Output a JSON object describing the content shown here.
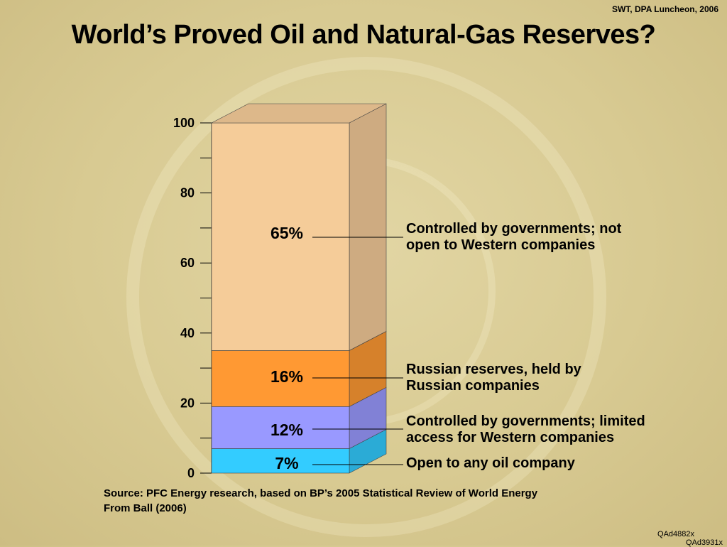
{
  "header": {
    "note": "SWT, DPA Luncheon, 2006",
    "title": "World’s Proved Oil and Natural-Gas Reserves?"
  },
  "chart_data": {
    "type": "bar",
    "stacked": true,
    "categories": [
      ""
    ],
    "ylim": [
      0,
      100
    ],
    "yticks": [
      0,
      20,
      40,
      60,
      80,
      100
    ],
    "series": [
      {
        "name": "Open to any oil company",
        "values": [
          7
        ],
        "label": "7%",
        "color": "#33ccff"
      },
      {
        "name": "Controlled by governments; limited access for Western companies",
        "values": [
          12
        ],
        "label": "12%",
        "color": "#9999ff"
      },
      {
        "name": "Russian reserves, held by Russian companies",
        "values": [
          16
        ],
        "label": "16%",
        "color": "#ff9933"
      },
      {
        "name": "Controlled by governments; not open to Western companies",
        "values": [
          65
        ],
        "label": "65%",
        "color": "#f5cc99"
      }
    ],
    "segment_labels": [
      {
        "line1": "Open to any oil company",
        "line2": ""
      },
      {
        "line1": "Controlled by governments; limited",
        "line2": "access for Western companies"
      },
      {
        "line1": "Russian reserves, held by",
        "line2": "Russian companies"
      },
      {
        "line1": "Controlled by governments; not",
        "line2": "open to Western companies"
      }
    ]
  },
  "source": {
    "line1": "Source: PFC Energy research, based on BP’s 2005 Statistical Review of World Energy",
    "line2": "From Ball (2006)"
  },
  "codes": {
    "code1": "QAd4882x",
    "code2": "QAd3931x"
  }
}
